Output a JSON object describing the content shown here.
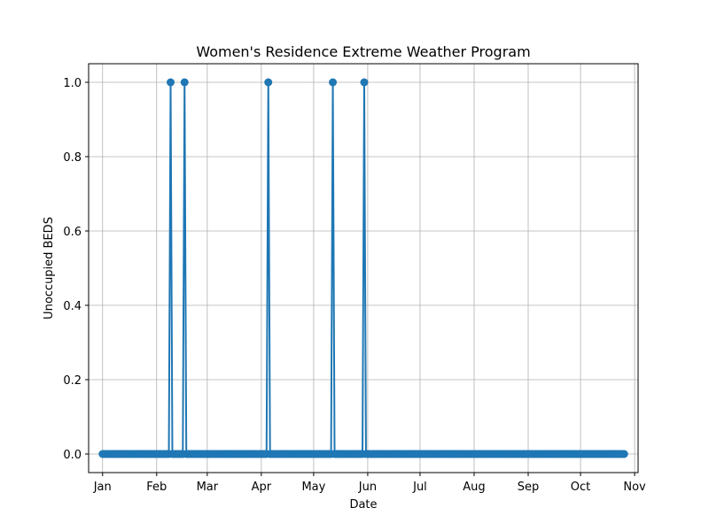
{
  "chart_data": {
    "type": "line",
    "title": "Women's Residence Extreme Weather Program",
    "xlabel": "Date",
    "ylabel": "Unoccupied BEDS",
    "grid": true,
    "marker": "circle",
    "color": "#1f77b4",
    "xlim": [
      "2023-12-24",
      "2024-11-03"
    ],
    "ylim": [
      -0.05,
      1.05
    ],
    "x_ticks": [
      {
        "date": "2024-01-01",
        "label": "Jan"
      },
      {
        "date": "2024-02-01",
        "label": "Feb"
      },
      {
        "date": "2024-03-01",
        "label": "Mar"
      },
      {
        "date": "2024-04-01",
        "label": "Apr"
      },
      {
        "date": "2024-05-01",
        "label": "May"
      },
      {
        "date": "2024-06-01",
        "label": "Jun"
      },
      {
        "date": "2024-07-01",
        "label": "Jul"
      },
      {
        "date": "2024-08-01",
        "label": "Aug"
      },
      {
        "date": "2024-09-01",
        "label": "Sep"
      },
      {
        "date": "2024-10-01",
        "label": "Oct"
      },
      {
        "date": "2024-11-01",
        "label": "Nov"
      }
    ],
    "y_ticks": [
      {
        "value": 0.0,
        "label": "0.0"
      },
      {
        "value": 0.2,
        "label": "0.2"
      },
      {
        "value": 0.4,
        "label": "0.4"
      },
      {
        "value": 0.6,
        "label": "0.6"
      },
      {
        "value": 0.8,
        "label": "0.8"
      },
      {
        "value": 1.0,
        "label": "1.0"
      }
    ],
    "series": [
      {
        "start_date": "2024-01-01",
        "end_date": "2024-10-26",
        "default_value": 0,
        "nonzero_points": [
          {
            "x": "2024-02-09",
            "y": 1
          },
          {
            "x": "2024-02-17",
            "y": 1
          },
          {
            "x": "2024-04-05",
            "y": 1
          },
          {
            "x": "2024-05-12",
            "y": 1
          },
          {
            "x": "2024-05-30",
            "y": 1
          }
        ]
      }
    ]
  }
}
